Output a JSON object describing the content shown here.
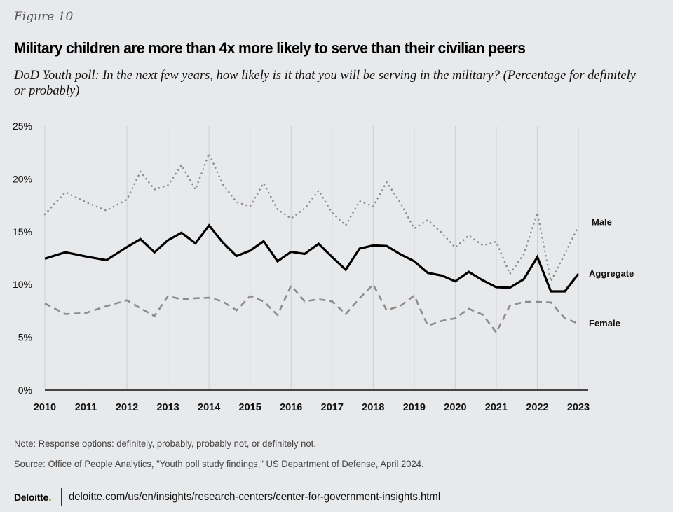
{
  "figure_label": "Figure 10",
  "title": "Military children are more than 4x more likely to serve than their civilian peers",
  "subtitle": "DoD Youth poll: In the next few years, how likely is it that you will be serving in the military? (Percentage for definitely or probably)",
  "chart_data": {
    "type": "line",
    "title": "Military children are more than 4x more likely to serve than their civilian peers",
    "xlabel": "",
    "ylabel": "",
    "ylim": [
      0,
      25
    ],
    "xlim": [
      2010,
      2023
    ],
    "grid": "vertical at years",
    "y_ticks": [
      "0%",
      "5%",
      "10%",
      "15%",
      "20%",
      "25%"
    ],
    "y_tick_values": [
      0,
      5,
      10,
      15,
      20,
      25
    ],
    "x_ticks": [
      "2010",
      "2011",
      "2012",
      "2013",
      "2014",
      "2015",
      "2016",
      "2017",
      "2018",
      "2019",
      "2020",
      "2021",
      "2022",
      "2023"
    ],
    "x": [
      2010,
      2010.5,
      2011,
      2011.5,
      2012,
      2012.33,
      2012.67,
      2013,
      2013.33,
      2013.67,
      2014,
      2014.33,
      2014.67,
      2015,
      2015.33,
      2015.67,
      2016,
      2016.33,
      2016.67,
      2017,
      2017.33,
      2017.67,
      2018,
      2018.33,
      2018.67,
      2019,
      2019.33,
      2019.67,
      2020,
      2020.33,
      2020.67,
      2021,
      2021.33,
      2021.67,
      2022,
      2022.33,
      2022.67,
      2023
    ],
    "legend": "right (inline labels at line ends)",
    "series": [
      {
        "name": "Male",
        "style": "dotted",
        "color": "#8c8c8c",
        "values": [
          16.65,
          18.75,
          17.8,
          17.0,
          18.05,
          20.7,
          19.0,
          19.4,
          21.3,
          19.0,
          22.4,
          19.5,
          17.8,
          17.4,
          19.6,
          17.1,
          16.25,
          17.2,
          18.9,
          16.8,
          15.6,
          17.9,
          17.4,
          19.7,
          17.7,
          15.3,
          16.1,
          14.9,
          13.5,
          14.65,
          13.7,
          14.05,
          11.0,
          12.85,
          16.8,
          10.3,
          12.9,
          15.5
        ]
      },
      {
        "name": "Aggregate",
        "style": "solid",
        "color": "#000000",
        "values": [
          12.45,
          13.05,
          12.65,
          12.3,
          13.55,
          14.3,
          13.05,
          14.2,
          14.9,
          13.9,
          15.6,
          14.0,
          12.7,
          13.2,
          14.1,
          12.2,
          13.1,
          12.9,
          13.85,
          12.6,
          11.4,
          13.4,
          13.7,
          13.65,
          12.85,
          12.2,
          11.1,
          10.85,
          10.3,
          11.2,
          10.4,
          9.75,
          9.7,
          10.5,
          12.6,
          9.35,
          9.35,
          11.0
        ]
      },
      {
        "name": "Female",
        "style": "dashed",
        "color": "#8c8c8c",
        "values": [
          8.2,
          7.2,
          7.3,
          7.95,
          8.5,
          7.75,
          7.0,
          8.9,
          8.6,
          8.7,
          8.75,
          8.4,
          7.55,
          8.9,
          8.4,
          7.1,
          9.9,
          8.4,
          8.6,
          8.4,
          7.2,
          8.7,
          10.0,
          7.55,
          8.0,
          8.95,
          6.1,
          6.55,
          6.8,
          7.7,
          7.15,
          5.45,
          8.0,
          8.35,
          8.35,
          8.3,
          6.8,
          6.3
        ]
      }
    ]
  },
  "note": "Note: Response options: definitely, probably, probably not, or definitely not.",
  "source": "Source: Office of People Analytics, \"Youth poll study findings,\" US Department of Defense, April 2024.",
  "footer": {
    "logo": "Deloitte",
    "logo_dot_color": "#86bc25",
    "url": "deloitte.com/us/en/insights/research-centers/center-for-government-insights.html"
  }
}
